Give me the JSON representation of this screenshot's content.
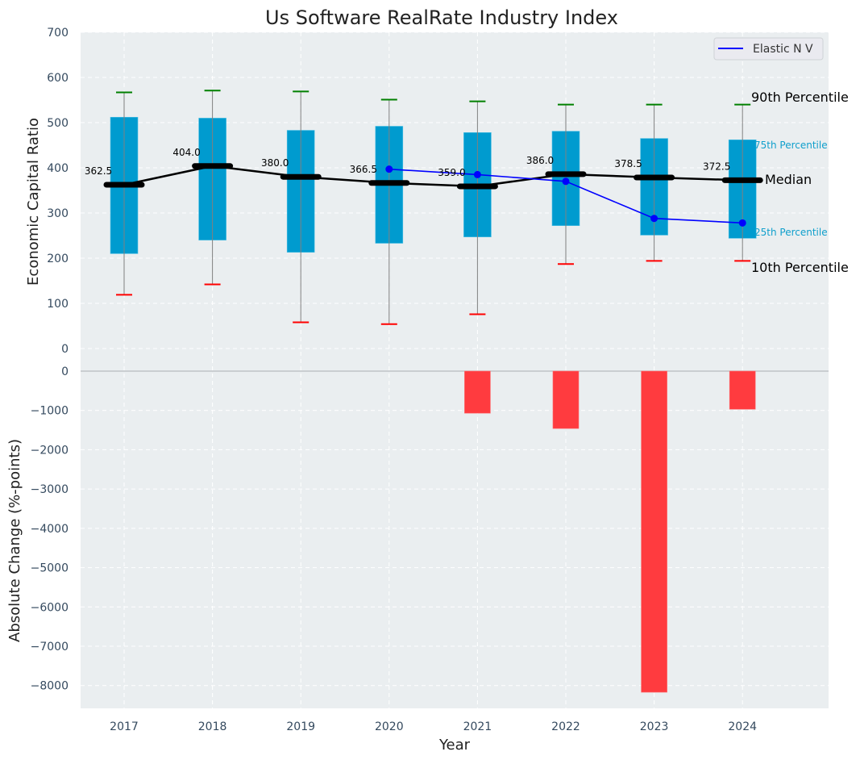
{
  "chart_data": [
    {
      "type": "box",
      "title": "Us Software RealRate Industry Index",
      "xlabel": "",
      "ylabel": "Economic Capital Ratio",
      "ylim": [
        -50,
        700
      ],
      "yticks": [
        0,
        100,
        200,
        300,
        400,
        500,
        600,
        700
      ],
      "grid": true,
      "categories": [
        "2017",
        "2018",
        "2019",
        "2020",
        "2021",
        "2022",
        "2023",
        "2024"
      ],
      "p10": [
        119,
        142,
        58,
        54,
        76,
        187,
        194,
        194
      ],
      "p25": [
        210,
        240,
        213,
        233,
        247,
        272,
        251,
        244
      ],
      "median": [
        362.5,
        404.0,
        380.0,
        366.5,
        359.0,
        386.0,
        378.5,
        372.5
      ],
      "p75": [
        512,
        510,
        483,
        492,
        478,
        481,
        465,
        462
      ],
      "p90": [
        567,
        571,
        569,
        551,
        547,
        540,
        540,
        540
      ],
      "median_labels": [
        "362.5",
        "404.0",
        "380.0",
        "366.5",
        "359.0",
        "386.0",
        "378.5",
        "372.5"
      ],
      "series": [
        {
          "name": "Elastic N V",
          "type": "line",
          "color": "#0000ff",
          "x": [
            "2020",
            "2021",
            "2022",
            "2023",
            "2024"
          ],
          "values": [
            397,
            385,
            370,
            288,
            278
          ]
        }
      ],
      "annotations": {
        "p90": "90th Percentile",
        "p75": "75th Percentile",
        "median": "Median",
        "p25": "25th Percentile",
        "p10": "10th Percentile"
      },
      "legend": {
        "position": "top-right",
        "entries": [
          "Elastic N V"
        ]
      },
      "colors": {
        "box": "#009bcf",
        "median": "#000000",
        "p90": "#008000",
        "p10": "#ff0000",
        "whisker": "#808080",
        "background": "#eaeef0"
      }
    },
    {
      "type": "bar",
      "xlabel": "Year",
      "ylabel": "Absolute Change (%-points)",
      "ylim": [
        -8580,
        0
      ],
      "yticks": [
        0,
        -1000,
        -2000,
        -3000,
        -4000,
        -5000,
        -6000,
        -7000,
        -8000
      ],
      "ytick_labels": [
        "0",
        "−1000",
        "−2000",
        "−3000",
        "−4000",
        "−5000",
        "−6000",
        "−7000",
        "−8000"
      ],
      "grid": true,
      "categories": [
        "2017",
        "2018",
        "2019",
        "2020",
        "2021",
        "2022",
        "2023",
        "2024"
      ],
      "values": [
        0,
        0,
        0,
        0,
        -1070,
        -1460,
        -8170,
        -970
      ],
      "colors": {
        "bar": "#ff3b3f"
      }
    }
  ]
}
